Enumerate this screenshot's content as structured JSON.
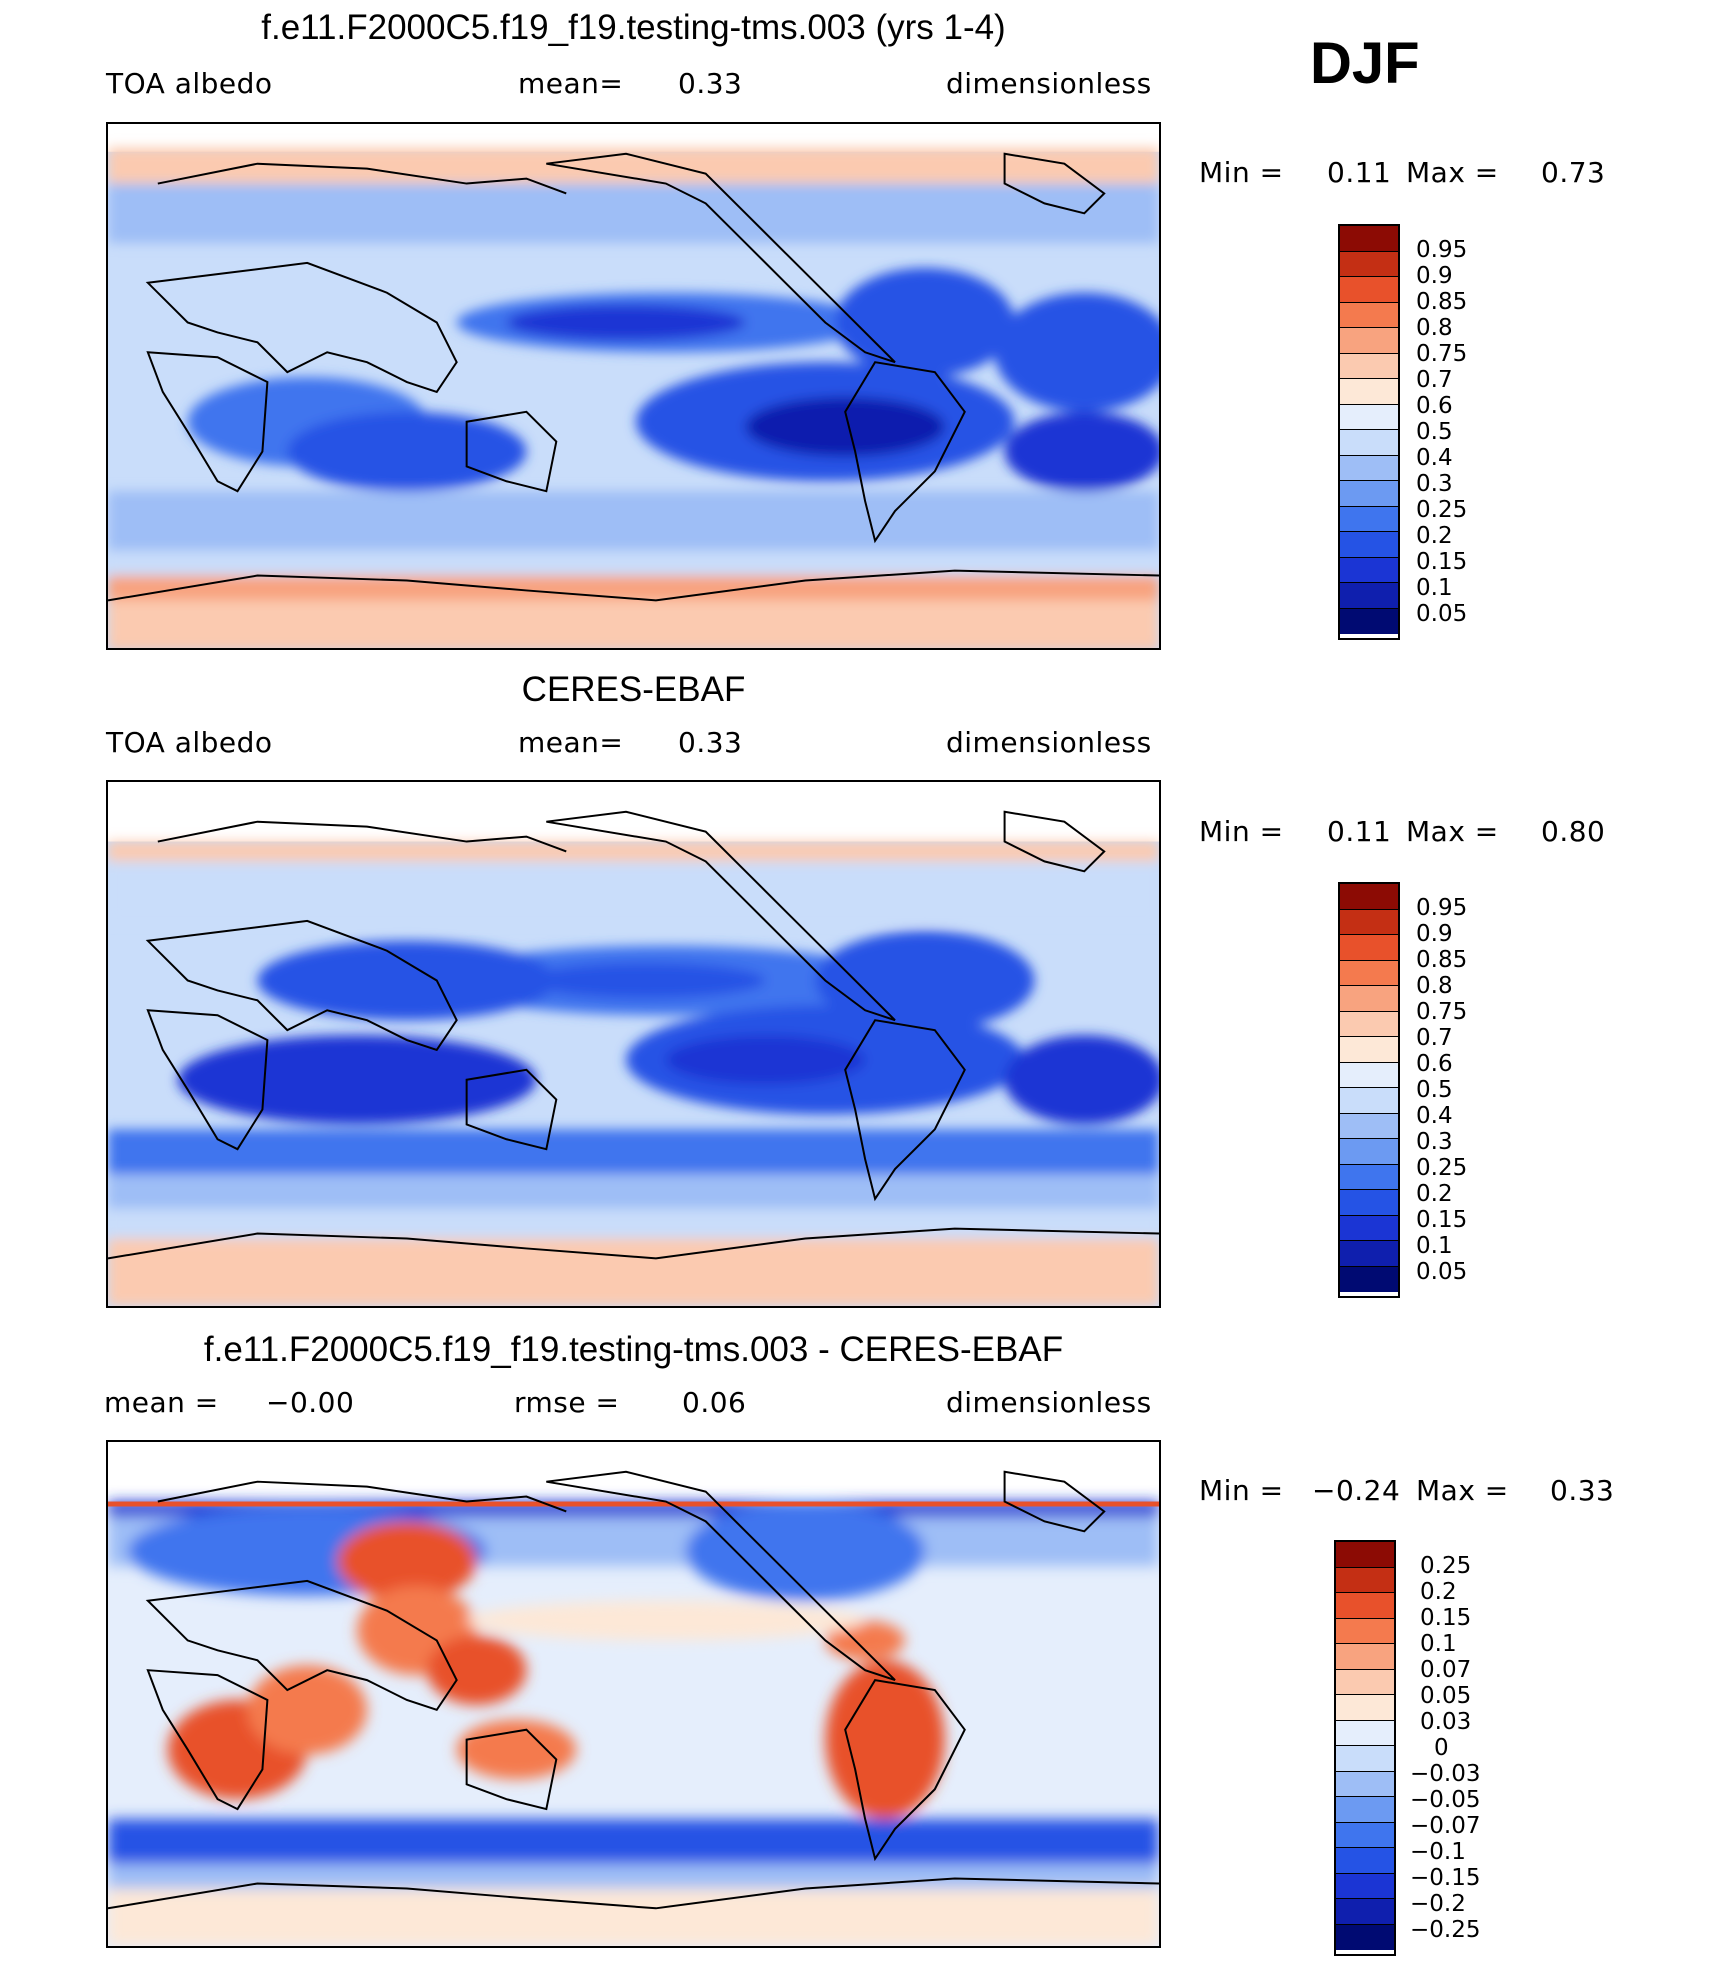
{
  "season": "DJF",
  "colors": {
    "abs_scale": [
      "#000a72",
      "#0f1fae",
      "#1b35d4",
      "#2553e5",
      "#3f75ee",
      "#6c9af2",
      "#9ebef6",
      "#c9ddfa",
      "#e5eefc",
      "#fde8d7",
      "#fbcab0",
      "#f8a37f",
      "#f47a4e",
      "#e8512b",
      "#c42f14",
      "#8c0b04"
    ],
    "diff_scale": [
      "#000a72",
      "#0f1fae",
      "#1b35d4",
      "#2553e5",
      "#3f75ee",
      "#6c9af2",
      "#9ebef6",
      "#c9ddfa",
      "#e5eefc",
      "#fde8d7",
      "#fbcab0",
      "#f8a37f",
      "#f47a4e",
      "#e8512b",
      "#c42f14",
      "#8c0b04"
    ]
  },
  "panels": [
    {
      "id": "model",
      "title": "f.e11.F2000C5.f19_f19.testing-tms.003 (yrs 1-4)",
      "left": "TOA  albedo",
      "center_label": "mean=",
      "center_value": "0.33",
      "units": "dimensionless",
      "min_label": "Min  =",
      "min_value": "0.11",
      "max_label": "Max  =",
      "max_value": "0.73",
      "colorbar_labels": [
        "0.95",
        "0.9",
        "0.85",
        "0.8",
        "0.75",
        "0.7",
        "0.6",
        "0.5",
        "0.4",
        "0.3",
        "0.25",
        "0.2",
        "0.15",
        "0.1",
        "0.05"
      ]
    },
    {
      "id": "obs",
      "title": "CERES-EBAF",
      "left": "TOA  albedo",
      "center_label": "mean=",
      "center_value": "0.33",
      "units": "dimensionless",
      "min_label": "Min  =",
      "min_value": "0.11",
      "max_label": "Max  =",
      "max_value": "0.80",
      "colorbar_labels": [
        "0.95",
        "0.9",
        "0.85",
        "0.8",
        "0.75",
        "0.7",
        "0.6",
        "0.5",
        "0.4",
        "0.3",
        "0.25",
        "0.2",
        "0.15",
        "0.1",
        "0.05"
      ]
    },
    {
      "id": "diff",
      "title": "f.e11.F2000C5.f19_f19.testing-tms.003 - CERES-EBAF",
      "left_label": "mean  =",
      "left_value": "−0.00",
      "center_label": "rmse  =",
      "center_value": "0.06",
      "units": "dimensionless",
      "min_label": "Min  =",
      "min_value": "−0.24",
      "max_label": "Max  =",
      "max_value": "0.33",
      "colorbar_labels": [
        "0.25",
        "0.2",
        "0.15",
        "0.1",
        "0.07",
        "0.05",
        "0.03",
        "0",
        "−0.03",
        "−0.05",
        "−0.07",
        "−0.1",
        "−0.15",
        "−0.2",
        "−0.25"
      ]
    }
  ]
}
